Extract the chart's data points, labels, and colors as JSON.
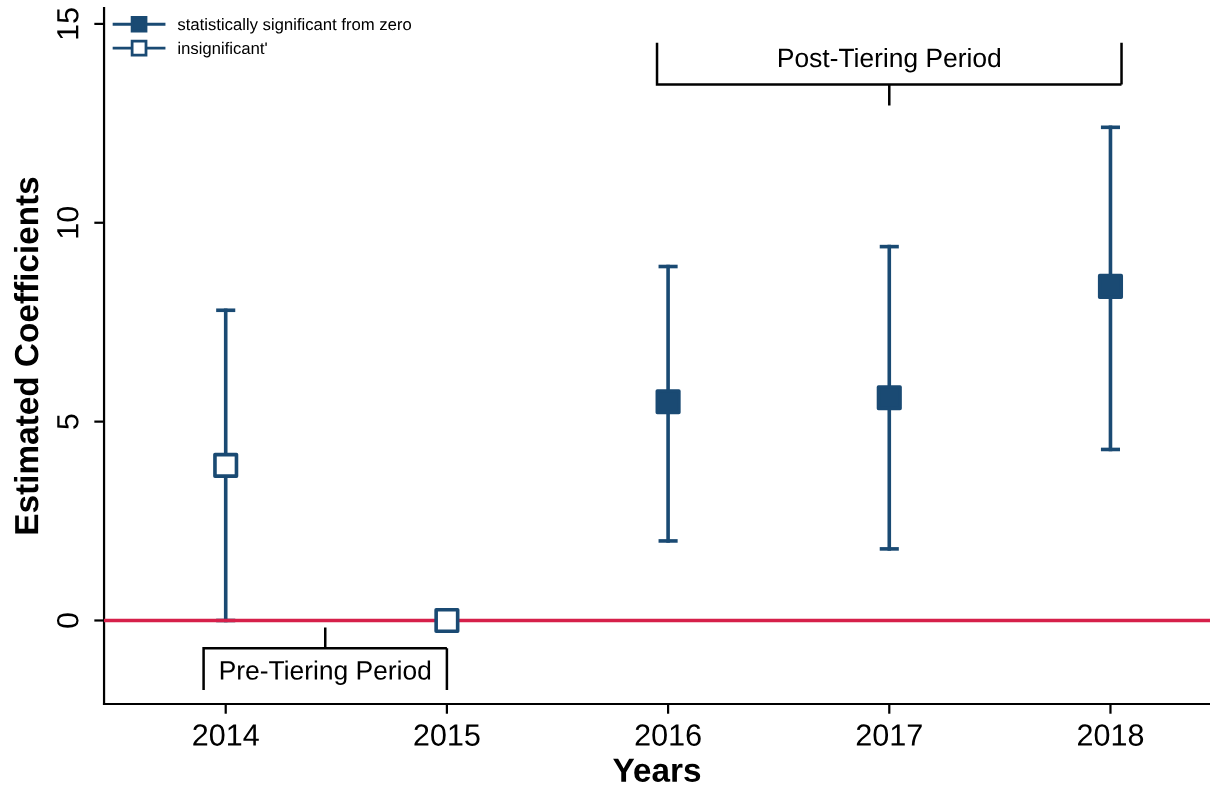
{
  "chart_data": {
    "type": "scatter",
    "xlabel": "Years",
    "ylabel": "Estimated Coefficients",
    "xlim": [
      2013.45,
      2018.45
    ],
    "xticks": [
      2014,
      2015,
      2016,
      2017,
      2018
    ],
    "ylim": [
      -2.1,
      15.4
    ],
    "yticks": [
      0,
      5,
      10,
      15
    ],
    "series": [
      {
        "name": "statistically significant from zero",
        "color": "#1a4a73",
        "x": [
          2016,
          2017,
          2018
        ],
        "values": [
          5.5,
          5.6,
          8.4
        ],
        "errors": [
          [
            2.0,
            8.9
          ],
          [
            1.8,
            9.4
          ],
          [
            4.3,
            12.4
          ]
        ]
      },
      {
        "name": "insignificant'",
        "color": "#1a4a73",
        "x": [
          2014,
          2015
        ],
        "values": [
          3.9,
          0
        ],
        "errors": [
          [
            0,
            7.8
          ],
          null
        ]
      }
    ],
    "marker": "square",
    "grid": false,
    "legend": "top left",
    "ref_lines": [
      {
        "axis": "y",
        "value": 0,
        "color": "#d6204a"
      }
    ],
    "annotations": [
      "Pre-Tiering Period",
      "Post-Tiering Period"
    ]
  }
}
